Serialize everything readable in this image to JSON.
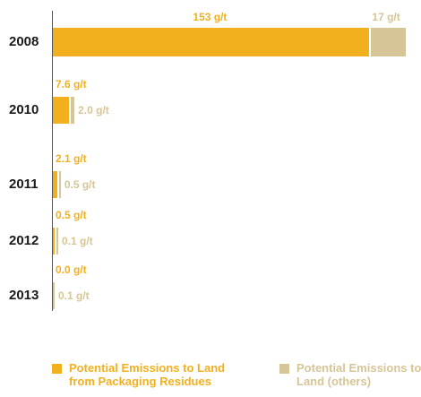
{
  "colors": {
    "packaging": "#f2b01e",
    "others": "#d6c596",
    "axis": "#555555",
    "year_text": "#1a1a1a"
  },
  "legend": {
    "packaging": "Potential Emissions to Land from Packaging Residues",
    "others": "Potential Emissions to Land (others)"
  },
  "chart_data": {
    "type": "bar",
    "orientation": "horizontal",
    "stacked": true,
    "unit": "g/t",
    "categories": [
      "2008",
      "2010",
      "2011",
      "2012",
      "2013"
    ],
    "series": [
      {
        "name": "Potential Emissions to Land from Packaging Residues",
        "values": [
          153,
          7.6,
          2.1,
          0.5,
          0.0
        ],
        "labels": [
          "153 g/t",
          "7.6 g/t",
          "2.1 g/t",
          "0.5 g/t",
          "0.0 g/t"
        ]
      },
      {
        "name": "Potential Emissions to Land (others)",
        "values": [
          17,
          2.0,
          0.5,
          0.1,
          0.1
        ],
        "labels": [
          "17 g/t",
          "2.0 g/t",
          "0.5 g/t",
          "0.1 g/t",
          "0.1 g/t"
        ]
      }
    ],
    "legend_position": "bottom",
    "grid": false
  }
}
